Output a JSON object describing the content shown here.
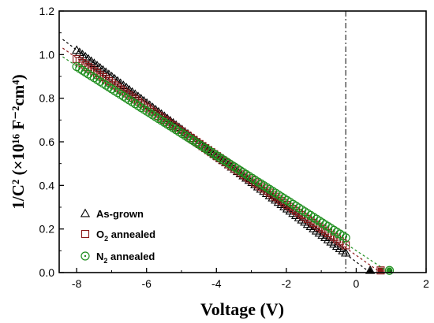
{
  "chart_data": {
    "type": "scatter",
    "xlabel": "Voltage (V)",
    "ylabel": "1/C² (×10¹⁶ F⁻²cm⁴)",
    "xlim": [
      -8.5,
      2
    ],
    "ylim": [
      0,
      1.2
    ],
    "xticks": [
      -8,
      -6,
      -4,
      -2,
      0,
      2
    ],
    "yticks": [
      0.0,
      0.2,
      0.4,
      0.6,
      0.8,
      1.0,
      1.2
    ],
    "xtick_labels": [
      "-8",
      "-6",
      "-4",
      "-2",
      "0",
      "2"
    ],
    "ytick_labels": [
      "0.0",
      "0.2",
      "0.4",
      "0.6",
      "0.8",
      "1.0",
      "1.2"
    ],
    "vline_x": -0.3,
    "grid": false,
    "legend_position": "bottom-left",
    "data_range_x": [
      -8.0,
      -0.3
    ],
    "series": [
      {
        "name": "As-grown",
        "marker": "triangle",
        "color": "#000000",
        "fit_line": [
          [
            -8.4,
            1.07
          ],
          [
            0.4,
            0.0
          ]
        ],
        "points_line": [
          [
            -8.0,
            1.02
          ],
          [
            -0.3,
            0.09
          ]
        ],
        "intercept_x": 0.4
      },
      {
        "name": "O2 annealed",
        "marker": "square",
        "color": "#8b1a1a",
        "fit_line": [
          [
            -8.4,
            1.03
          ],
          [
            0.7,
            0.0
          ]
        ],
        "points_line": [
          [
            -8.0,
            0.98
          ],
          [
            -0.3,
            0.125
          ]
        ],
        "intercept_x": 0.7
      },
      {
        "name": "N2 annealed",
        "marker": "circle",
        "color": "#1f8f1f",
        "fit_line": [
          [
            -8.4,
            0.99
          ],
          [
            0.95,
            0.0
          ]
        ],
        "points_line": [
          [
            -8.0,
            0.945
          ],
          [
            -0.3,
            0.16
          ]
        ],
        "intercept_x": 0.95
      }
    ]
  },
  "legend": {
    "items": [
      {
        "main": "As-grown",
        "sub": "",
        "rest": ""
      },
      {
        "main": "O",
        "sub": "2",
        "rest": " annealed"
      },
      {
        "main": "N",
        "sub": "2",
        "rest": " annealed"
      }
    ]
  }
}
